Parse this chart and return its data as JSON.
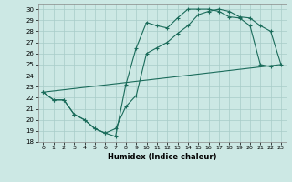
{
  "xlabel": "Humidex (Indice chaleur)",
  "background_color": "#cce8e4",
  "grid_color": "#a8ccc8",
  "line_color": "#1a6b5a",
  "ylim": [
    18,
    30.5
  ],
  "xlim": [
    -0.5,
    23.5
  ],
  "yticks": [
    18,
    19,
    20,
    21,
    22,
    23,
    24,
    25,
    26,
    27,
    28,
    29,
    30
  ],
  "xticks": [
    0,
    1,
    2,
    3,
    4,
    5,
    6,
    7,
    8,
    9,
    10,
    11,
    12,
    13,
    14,
    15,
    16,
    17,
    18,
    19,
    20,
    21,
    22,
    23
  ],
  "line1_x": [
    0,
    1,
    2,
    3,
    4,
    5,
    6,
    7,
    8,
    9,
    10,
    11,
    12,
    13,
    14,
    15,
    16,
    17,
    18,
    19,
    20,
    21,
    22
  ],
  "line1_y": [
    22.5,
    21.8,
    21.8,
    20.5,
    20.0,
    19.2,
    18.8,
    18.5,
    23.2,
    26.5,
    28.8,
    28.5,
    28.3,
    29.2,
    30.0,
    30.0,
    30.0,
    29.8,
    29.3,
    29.2,
    28.5,
    25.0,
    24.8
  ],
  "line2_x": [
    0,
    1,
    2,
    3,
    4,
    5,
    6,
    7,
    8,
    9,
    10,
    11,
    12,
    13,
    14,
    15,
    16,
    17,
    18,
    19,
    20,
    21,
    22,
    23
  ],
  "line2_y": [
    22.5,
    21.8,
    21.8,
    20.5,
    20.0,
    19.2,
    18.8,
    19.2,
    21.2,
    22.2,
    26.0,
    26.5,
    27.0,
    27.8,
    28.5,
    29.5,
    29.8,
    30.0,
    29.8,
    29.3,
    29.2,
    28.5,
    28.0,
    25.0
  ],
  "line3_x": [
    0,
    23
  ],
  "line3_y": [
    22.5,
    25.0
  ]
}
